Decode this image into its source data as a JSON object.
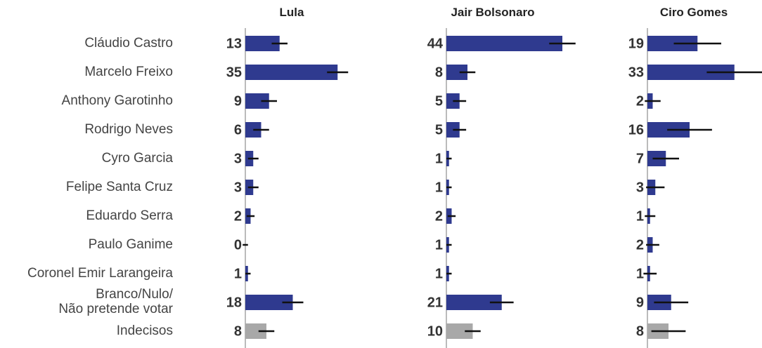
{
  "chart_data": {
    "type": "bar",
    "orientation": "horizontal",
    "categories": [
      "Cláudio Castro",
      "Marcelo Freixo",
      "Anthony Garotinho",
      "Rodrigo Neves",
      "Cyro Garcia",
      "Felipe Santa Cruz",
      "Eduardo Serra",
      "Paulo Ganime",
      "Coronel Emir Larangeira",
      "Branco/Nulo/\nNão pretende votar",
      "Indecisos"
    ],
    "colors": [
      "#2f3a8f",
      "#2f3a8f",
      "#2f3a8f",
      "#2f3a8f",
      "#2f3a8f",
      "#2f3a8f",
      "#2f3a8f",
      "#2f3a8f",
      "#2f3a8f",
      "#2f3a8f",
      "#a8a8a8"
    ],
    "xlim": [
      0,
      50
    ],
    "series": [
      {
        "name": "Lula",
        "values": [
          13,
          35,
          9,
          6,
          3,
          3,
          2,
          0,
          1,
          18,
          8
        ],
        "errors": [
          3,
          4,
          3,
          3,
          2,
          2,
          1.5,
          1,
          1,
          4,
          3
        ]
      },
      {
        "name": "Jair Bolsonaro",
        "values": [
          44,
          8,
          5,
          5,
          1,
          1,
          2,
          1,
          1,
          21,
          10
        ],
        "errors": [
          5,
          3,
          2.5,
          2.5,
          1,
          1,
          1.5,
          1,
          1,
          4.5,
          3
        ]
      },
      {
        "name": "Ciro Gomes",
        "values": [
          19,
          33,
          2,
          16,
          7,
          3,
          1,
          2,
          1,
          9,
          8
        ],
        "errors": [
          9,
          10.5,
          3,
          8.5,
          5,
          3.5,
          2,
          2.5,
          2.5,
          6.5,
          6.5
        ]
      }
    ]
  }
}
